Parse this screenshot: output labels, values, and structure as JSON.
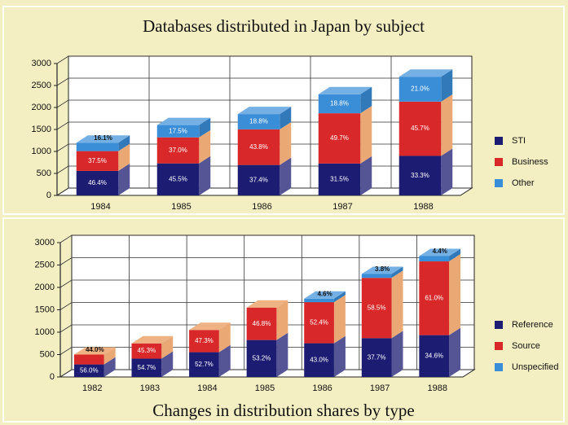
{
  "chart_data": [
    {
      "type": "bar",
      "stacked": true,
      "title": "Databases distributed in Japan by subject",
      "categories": [
        "1984",
        "1985",
        "1986",
        "1987",
        "1988"
      ],
      "series": [
        {
          "name": "STI",
          "color": "#1c1c72",
          "values": [
            557,
            728,
            692,
            725,
            899
          ],
          "value_labels": [
            "46.4%",
            "45.5%",
            "37.4%",
            "31.5%",
            "33.3%"
          ]
        },
        {
          "name": "Business",
          "color": "#d8282a",
          "values": [
            450,
            592,
            810,
            1143,
            1234
          ],
          "value_labels": [
            "37.5%",
            "37.0%",
            "43.8%",
            "49.7%",
            "45.7%"
          ]
        },
        {
          "name": "Other",
          "color": "#3a8ed8",
          "values": [
            193,
            280,
            348,
            432,
            567
          ],
          "value_labels": [
            "16.1%",
            "17.5%",
            "18.8%",
            "18.8%",
            "21.0%"
          ]
        }
      ],
      "ylim": [
        0,
        3000
      ],
      "yticks": [
        0,
        500,
        1000,
        1500,
        2000,
        2500,
        3000
      ],
      "grid": true,
      "legend": "right"
    },
    {
      "type": "bar",
      "stacked": true,
      "title": "Changes in distribution shares by type",
      "categories": [
        "1982",
        "1983",
        "1984",
        "1985",
        "1986",
        "1987",
        "1988"
      ],
      "series": [
        {
          "name": "Reference",
          "color": "#1c1c72",
          "values": [
            280,
            410,
            553,
            825,
            753,
            867,
            934
          ],
          "value_labels": [
            "56.0%",
            "54.7%",
            "52.7%",
            "53.2%",
            "43.0%",
            "37.7%",
            "34.6%"
          ]
        },
        {
          "name": "Source",
          "color": "#d8282a",
          "values": [
            220,
            340,
            497,
            725,
            917,
            1346,
            1647
          ],
          "value_labels": [
            "44.0%",
            "45.3%",
            "47.3%",
            "46.8%",
            "52.4%",
            "58.5%",
            "61.0%"
          ]
        },
        {
          "name": "Unspecified",
          "color": "#3a8ed8",
          "values": [
            null,
            null,
            null,
            null,
            80,
            87,
            119
          ],
          "value_labels": [
            null,
            null,
            null,
            null,
            "4.6%",
            "3.8%",
            "4.4%"
          ]
        }
      ],
      "ylim": [
        0,
        3000
      ],
      "yticks": [
        0,
        500,
        1000,
        1500,
        2000,
        2500,
        3000
      ],
      "grid": true,
      "legend": "right"
    }
  ]
}
